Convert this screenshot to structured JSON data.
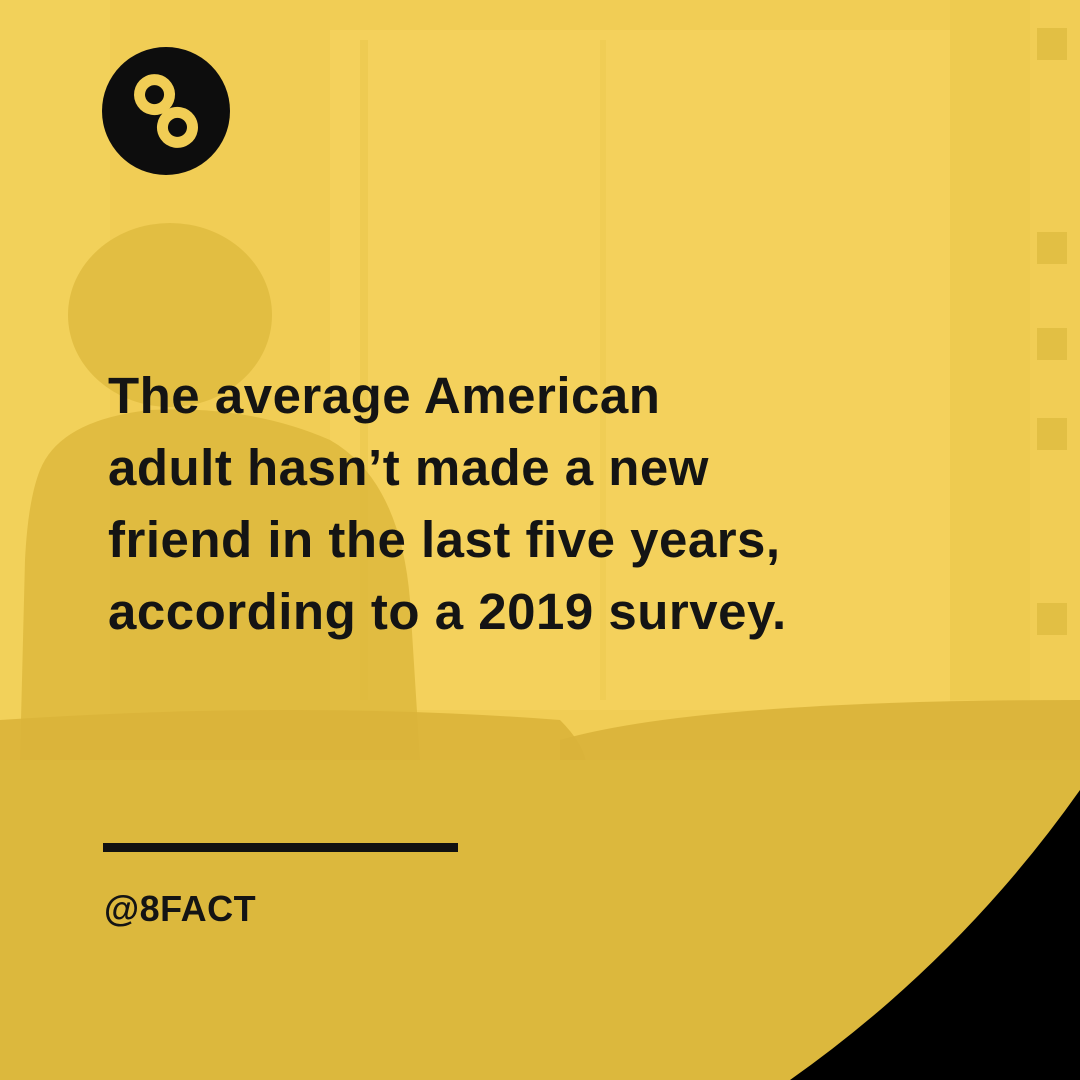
{
  "brand": {
    "logo_icon": "infinity-eight-icon"
  },
  "fact": {
    "lines": [
      "The average American",
      "adult hasn’t made a new",
      "friend in the last five years,",
      "according to a 2019 survey."
    ]
  },
  "footer": {
    "handle": "@8FACT"
  },
  "colors": {
    "background": "#f1cd55",
    "background_dark": "#dcb73a",
    "text": "#141414",
    "corner": "#000000"
  }
}
